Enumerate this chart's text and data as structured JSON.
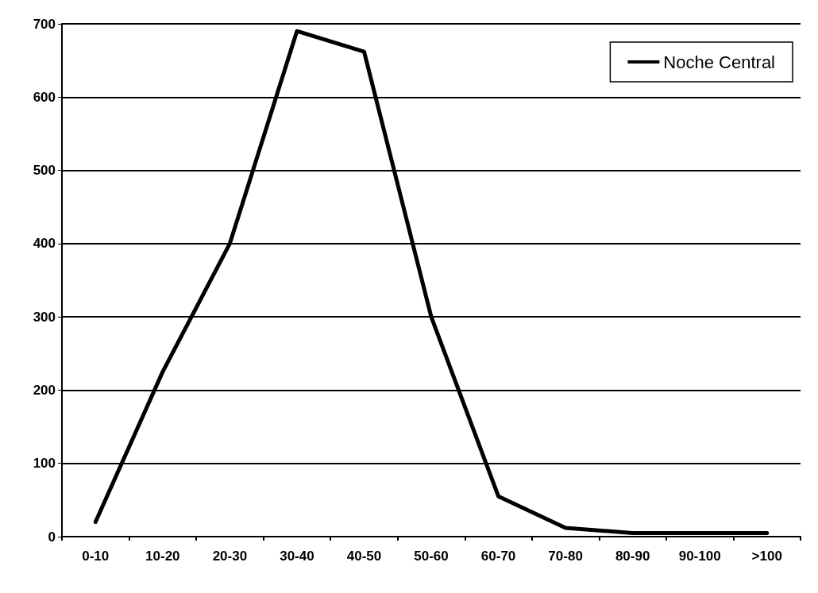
{
  "chart_data": {
    "type": "line",
    "categories": [
      "0-10",
      "10-20",
      "20-30",
      "30-40",
      "40-50",
      "50-60",
      "60-70",
      "70-80",
      "80-90",
      "90-100",
      ">100"
    ],
    "series": [
      {
        "name": "Noche Central",
        "color": "#000000",
        "values": [
          20,
          225,
          400,
          690,
          662,
          300,
          55,
          12,
          5,
          5,
          5
        ]
      }
    ],
    "ylim": [
      0,
      700
    ],
    "yticks": [
      0,
      100,
      200,
      300,
      400,
      500,
      600,
      700
    ],
    "grid": "y",
    "legend": "top right",
    "marker": "none",
    "line_style": "solid"
  }
}
